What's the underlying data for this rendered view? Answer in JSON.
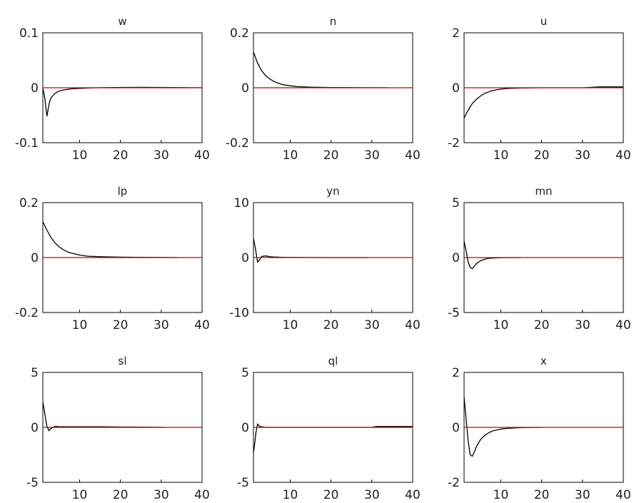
{
  "colors": {
    "response": "#000000",
    "zero_line": "#cc0000",
    "frame": "#000000",
    "background": "#ffffff"
  },
  "chart_data": [
    {
      "type": "line",
      "title": "w",
      "xlabel": "",
      "ylabel": "",
      "xlim": [
        1,
        40
      ],
      "ylim": [
        -0.1,
        0.1
      ],
      "xticks": [
        10,
        20,
        30,
        40
      ],
      "ytick_labels": [
        "0.1",
        "0",
        "-0.1"
      ],
      "series": [
        {
          "x": [
            1,
            1.5,
            2,
            2.5,
            3,
            4,
            5,
            6,
            7,
            8,
            10,
            14,
            18,
            25,
            32,
            40
          ],
          "y": [
            0,
            -0.02,
            -0.052,
            -0.03,
            -0.018,
            -0.01,
            -0.006,
            -0.004,
            -0.003,
            -0.002,
            -0.001,
            0,
            0.0005,
            0.0008,
            0.0005,
            0
          ]
        },
        {
          "x": [
            1,
            40
          ],
          "y": [
            0,
            0
          ]
        }
      ]
    },
    {
      "type": "line",
      "title": "n",
      "xlabel": "",
      "ylabel": "",
      "xlim": [
        1,
        40
      ],
      "ylim": [
        -0.2,
        0.2
      ],
      "xticks": [
        10,
        20,
        30,
        40
      ],
      "ytick_labels": [
        "0.2",
        "0",
        "-0.2"
      ],
      "series": [
        {
          "x": [
            1,
            1.5,
            2,
            3,
            4,
            5,
            6,
            7,
            8,
            10,
            12,
            15,
            20,
            25,
            30,
            34
          ],
          "y": [
            0.13,
            0.11,
            0.09,
            0.062,
            0.044,
            0.032,
            0.023,
            0.017,
            0.012,
            0.007,
            0.004,
            0.002,
            0.001,
            0.0005,
            0.0002,
            0
          ]
        },
        {
          "x": [
            1,
            40
          ],
          "y": [
            0,
            0
          ]
        }
      ]
    },
    {
      "type": "line",
      "title": "u",
      "xlabel": "",
      "ylabel": "",
      "xlim": [
        1,
        40
      ],
      "ylim": [
        -2,
        2
      ],
      "xticks": [
        10,
        20,
        30,
        40
      ],
      "ytick_labels": [
        "2",
        "0",
        "-2"
      ],
      "series": [
        {
          "x": [
            1,
            1.5,
            2,
            3,
            4,
            5,
            6,
            7,
            8,
            10,
            12,
            15,
            20,
            30,
            34,
            36,
            40
          ],
          "y": [
            -1.1,
            -0.95,
            -0.82,
            -0.58,
            -0.42,
            -0.3,
            -0.21,
            -0.15,
            -0.1,
            -0.05,
            -0.02,
            -0.01,
            0,
            0,
            0.03,
            0.03,
            0.03
          ]
        },
        {
          "x": [
            1,
            40
          ],
          "y": [
            0,
            0
          ]
        }
      ]
    },
    {
      "type": "line",
      "title": "lp",
      "xlabel": "",
      "ylabel": "",
      "xlim": [
        1,
        40
      ],
      "ylim": [
        -0.2,
        0.2
      ],
      "xticks": [
        10,
        20,
        30,
        40
      ],
      "ytick_labels": [
        "0.2",
        "0",
        "-0.2"
      ],
      "series": [
        {
          "x": [
            1,
            1.5,
            2,
            3,
            4,
            5,
            6,
            7,
            8,
            10,
            12,
            15,
            20,
            25,
            30,
            34
          ],
          "y": [
            0.13,
            0.115,
            0.1,
            0.073,
            0.053,
            0.039,
            0.029,
            0.021,
            0.016,
            0.009,
            0.005,
            0.003,
            0.0015,
            0.001,
            0.0005,
            0
          ]
        },
        {
          "x": [
            1,
            40
          ],
          "y": [
            0,
            0
          ]
        }
      ]
    },
    {
      "type": "line",
      "title": "yn",
      "xlabel": "",
      "ylabel": "",
      "xlim": [
        1,
        40
      ],
      "ylim": [
        -10,
        10
      ],
      "xticks": [
        10,
        20,
        30,
        40
      ],
      "ytick_labels": [
        "10",
        "0",
        "-10"
      ],
      "series": [
        {
          "x": [
            1,
            1.5,
            2,
            2.5,
            3,
            4,
            5,
            6,
            8,
            10,
            15,
            20,
            29
          ],
          "y": [
            3.5,
            1.5,
            -0.8,
            -0.4,
            0.2,
            0.3,
            0.15,
            0.1,
            0.05,
            0.02,
            0.01,
            0,
            0
          ]
        },
        {
          "x": [
            1,
            40
          ],
          "y": [
            0,
            0
          ]
        }
      ]
    },
    {
      "type": "line",
      "title": "mn",
      "xlabel": "",
      "ylabel": "",
      "xlim": [
        1,
        40
      ],
      "ylim": [
        -5,
        5
      ],
      "xticks": [
        10,
        20,
        30,
        40
      ],
      "ytick_labels": [
        "5",
        "0",
        "-5"
      ],
      "series": [
        {
          "x": [
            1,
            1.5,
            2,
            2.5,
            3,
            3.5,
            4,
            5,
            6,
            7,
            9,
            12,
            15
          ],
          "y": [
            1.5,
            0.6,
            -0.4,
            -0.9,
            -1.0,
            -0.8,
            -0.55,
            -0.3,
            -0.15,
            -0.07,
            -0.02,
            0,
            0
          ]
        },
        {
          "x": [
            1,
            40
          ],
          "y": [
            0,
            0
          ]
        }
      ]
    },
    {
      "type": "line",
      "title": "sl",
      "xlabel": "",
      "ylabel": "",
      "xlim": [
        1,
        40
      ],
      "ylim": [
        -5,
        5
      ],
      "xticks": [
        10,
        20,
        30,
        40
      ],
      "ytick_labels": [
        "5",
        "0",
        "-5"
      ],
      "series": [
        {
          "x": [
            1,
            1.5,
            2,
            2.5,
            3,
            4,
            5,
            6,
            8,
            10,
            15,
            20,
            25,
            31
          ],
          "y": [
            2.3,
            1.2,
            0.1,
            -0.3,
            -0.1,
            0.1,
            0.05,
            0.05,
            0.05,
            0.05,
            0.05,
            0.03,
            0.02,
            0
          ]
        },
        {
          "x": [
            1,
            40
          ],
          "y": [
            0,
            0
          ]
        }
      ]
    },
    {
      "type": "line",
      "title": "ql",
      "xlabel": "",
      "ylabel": "",
      "xlim": [
        1,
        40
      ],
      "ylim": [
        -5,
        5
      ],
      "xticks": [
        10,
        20,
        30,
        40
      ],
      "ytick_labels": [
        "5",
        "0",
        "-5"
      ],
      "series": [
        {
          "x": [
            1,
            1.3,
            1.6,
            2,
            2.5,
            3,
            4,
            5,
            6,
            8,
            10,
            15,
            20,
            30,
            31,
            35,
            40
          ],
          "y": [
            -2.3,
            -1.5,
            -0.5,
            0.3,
            0.1,
            0.05,
            0,
            0,
            0,
            0,
            0,
            0,
            0,
            0,
            0.08,
            0.08,
            0.08
          ]
        },
        {
          "x": [
            1,
            40
          ],
          "y": [
            0,
            0
          ]
        }
      ]
    },
    {
      "type": "line",
      "title": "x",
      "xlabel": "",
      "ylabel": "",
      "xlim": [
        1,
        40
      ],
      "ylim": [
        -2,
        2
      ],
      "xticks": [
        10,
        20,
        30,
        40
      ],
      "ytick_labels": [
        "2",
        "0",
        "-2"
      ],
      "series": [
        {
          "x": [
            1,
            1.5,
            2,
            2.5,
            3,
            3.5,
            4,
            5,
            6,
            7,
            8,
            10,
            12,
            15,
            20
          ],
          "y": [
            1.1,
            0.3,
            -0.5,
            -1.0,
            -1.05,
            -0.9,
            -0.7,
            -0.45,
            -0.3,
            -0.2,
            -0.13,
            -0.06,
            -0.03,
            -0.01,
            0
          ]
        },
        {
          "x": [
            1,
            40
          ],
          "y": [
            0,
            0
          ]
        }
      ]
    }
  ]
}
